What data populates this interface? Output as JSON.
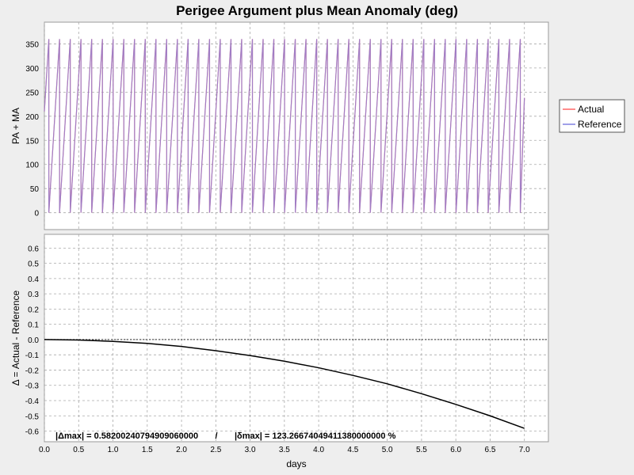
{
  "chart_data": [
    {
      "type": "line",
      "title": "Perigee Argument plus Mean Anomaly (deg)",
      "xlabel": "",
      "ylabel": "PA + MA",
      "xlim": [
        0.0,
        7.35
      ],
      "ylim": [
        -35,
        395
      ],
      "x_ticks": [
        "0.0",
        "0.5",
        "1.0",
        "1.5",
        "2.0",
        "2.5",
        "3.0",
        "3.5",
        "4.0",
        "4.5",
        "5.0",
        "5.5",
        "6.0",
        "6.5",
        "7.0"
      ],
      "y_ticks": [
        "0",
        "50",
        "100",
        "150",
        "200",
        "250",
        "300",
        "350"
      ],
      "grid": true,
      "legend_position": "right",
      "x_range": [
        0.0,
        7.0
      ],
      "value_range": [
        0,
        360
      ],
      "cycles_per_day": 6.4,
      "series": [
        {
          "name": "Actual",
          "color": "#ff6666",
          "start_value": 210,
          "end_value": 238
        },
        {
          "name": "Reference",
          "color": "#8080e0",
          "start_value": 210,
          "end_value": 238
        }
      ]
    },
    {
      "type": "line",
      "title": "",
      "xlabel": "days",
      "ylabel": "Δ = Actual - Reference",
      "xlim": [
        0.0,
        7.35
      ],
      "ylim": [
        -0.67,
        0.69
      ],
      "x_ticks": [
        "0.0",
        "0.5",
        "1.0",
        "1.5",
        "2.0",
        "2.5",
        "3.0",
        "3.5",
        "4.0",
        "4.5",
        "5.0",
        "5.5",
        "6.0",
        "6.5",
        "7.0"
      ],
      "y_ticks": [
        "-0.6",
        "-0.5",
        "-0.4",
        "-0.3",
        "-0.2",
        "-0.1",
        "0.0",
        "0.1",
        "0.2",
        "0.3",
        "0.4",
        "0.5",
        "0.6"
      ],
      "grid": true,
      "zero_line": true,
      "series": [
        {
          "name": "",
          "color": "#000000",
          "x": [
            0.0,
            0.5,
            1.0,
            1.5,
            2.0,
            2.5,
            3.0,
            3.5,
            4.0,
            4.5,
            5.0,
            5.5,
            6.0,
            6.5,
            7.0
          ],
          "values": [
            0.0,
            -0.003,
            -0.012,
            -0.025,
            -0.045,
            -0.073,
            -0.105,
            -0.142,
            -0.185,
            -0.235,
            -0.29,
            -0.355,
            -0.425,
            -0.5,
            -0.582
          ]
        }
      ],
      "annotation": "|Δmax| = 0.58200240794909060000       /       |δmax| = 123.26674049411380000000 %"
    }
  ]
}
